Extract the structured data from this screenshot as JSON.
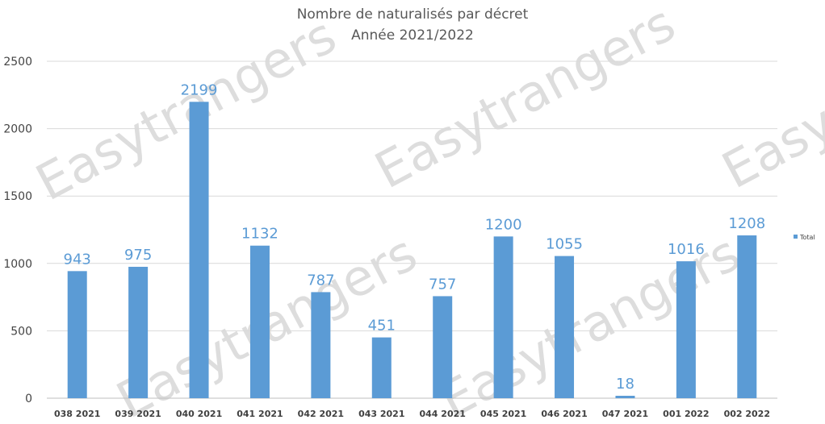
{
  "chart_data": {
    "type": "bar",
    "title": "Nombre de naturalisés par décret",
    "subtitle": "Année 2021/2022",
    "categories": [
      "038 2021",
      "039 2021",
      "040 2021",
      "041 2021",
      "042 2021",
      "043 2021",
      "044 2021",
      "045 2021",
      "046 2021",
      "047 2021",
      "001 2022",
      "002 2022"
    ],
    "series": [
      {
        "name": "Total",
        "values": [
          943,
          975,
          2199,
          1132,
          787,
          451,
          757,
          1200,
          1055,
          18,
          1016,
          1208
        ]
      }
    ],
    "yticks": [
      "0",
      "500",
      "1000",
      "1500",
      "2000",
      "2500"
    ],
    "ylim": [
      0,
      2500
    ],
    "grid": true,
    "legend_position": "right",
    "bar_color": "#5b9bd5",
    "label_color": "#5b9bd5",
    "watermark": "Easytrangers"
  }
}
